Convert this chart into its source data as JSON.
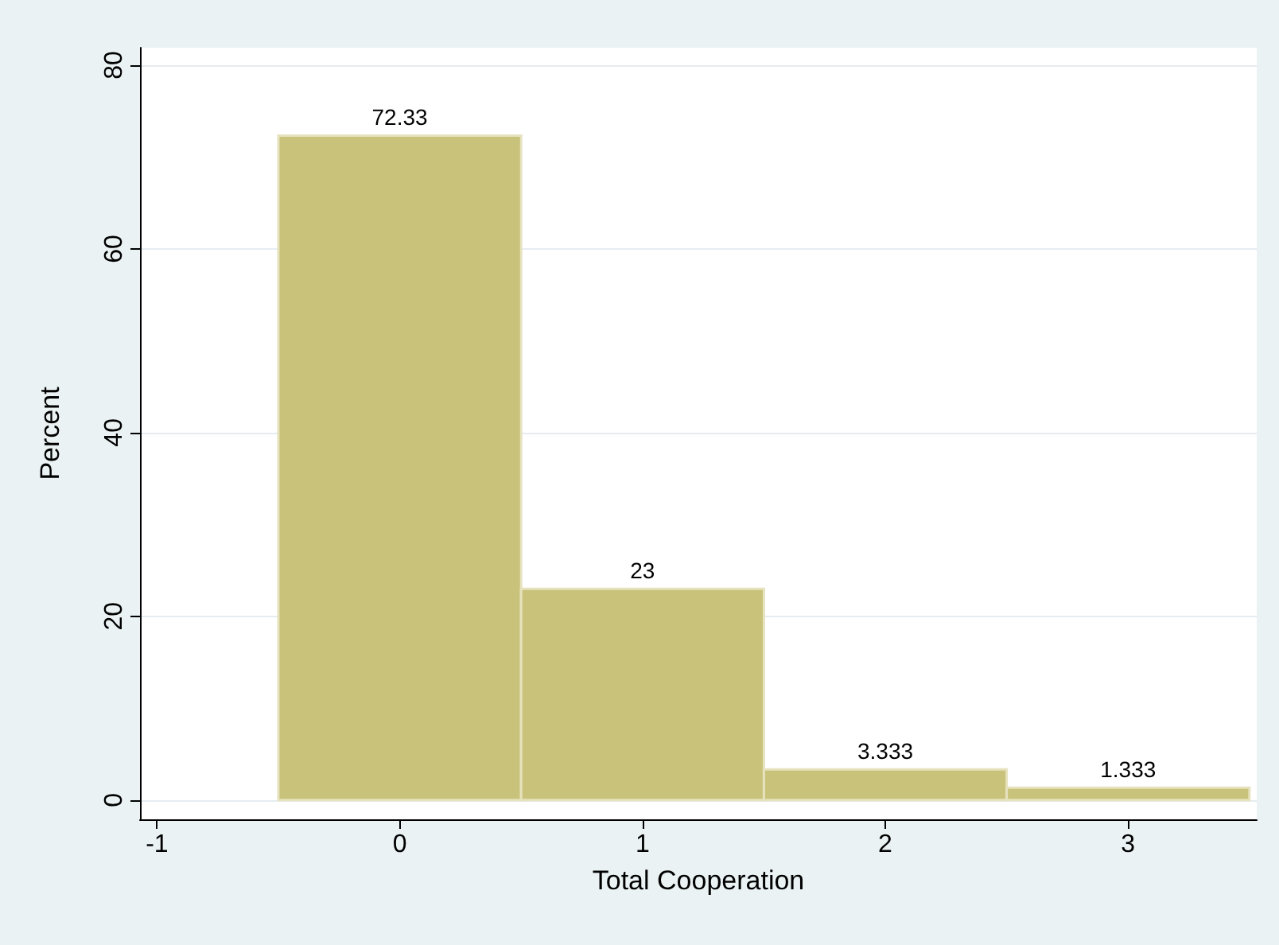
{
  "chart_data": {
    "type": "histogram",
    "xlabel": "Total Cooperation",
    "ylabel": "Percent",
    "bins": [
      -0.5,
      0.5,
      1.5,
      2.5,
      3.5
    ],
    "values": [
      72.33,
      23,
      3.333,
      1.333
    ],
    "color": "#c9c27b",
    "data_labels": true,
    "xlim": [
      -1.07,
      3.53
    ],
    "xticks": [
      -1,
      0,
      1,
      2,
      3
    ],
    "ylim": [
      -2.1,
      81.9
    ],
    "yticks": [
      0,
      20,
      40,
      60,
      80
    ],
    "grid": "y"
  }
}
